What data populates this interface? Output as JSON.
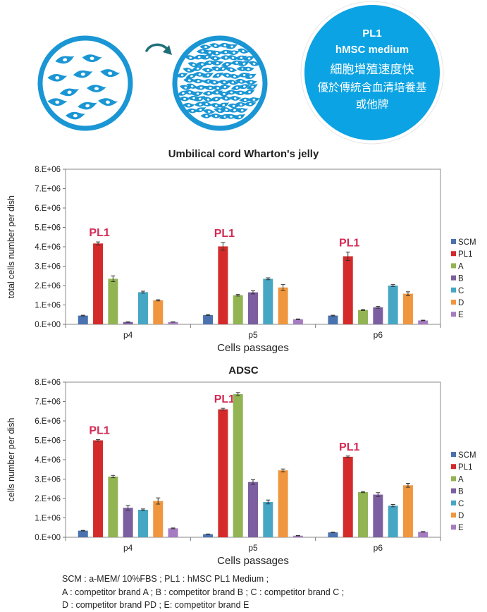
{
  "banner": {
    "line1": "PL1",
    "line2": "hMSC medium",
    "line3": "細胞增殖速度快",
    "line4": "優於傳統含血清培養基",
    "line5": "或他牌",
    "circle_color": "#0ba3e3",
    "cell_color": "#1a96d4"
  },
  "chart_data": [
    {
      "type": "bar",
      "title": "Umbilical cord Wharton's jelly",
      "xlabel": "Cells passages",
      "ylabel": "total cells number per dish",
      "ylim": [
        0,
        8000000
      ],
      "yticks": [
        "0.E+00",
        "1.E+06",
        "2.E+06",
        "3.E+06",
        "4.E+06",
        "5.E+06",
        "6.E+06",
        "7.E+06",
        "8.E+06"
      ],
      "categories": [
        "p4",
        "p5",
        "p6"
      ],
      "annotation": "PL1",
      "legend_position": "right",
      "series": [
        {
          "name": "SCM",
          "color": "#4a72b0",
          "values": [
            450000,
            480000,
            450000
          ],
          "errors": [
            20000,
            25000,
            20000
          ]
        },
        {
          "name": "PL1",
          "color": "#d42a2a",
          "values": [
            4170000,
            4020000,
            3510000
          ],
          "errors": [
            80000,
            200000,
            220000
          ]
        },
        {
          "name": "A",
          "color": "#92b452",
          "values": [
            2350000,
            1500000,
            740000
          ],
          "errors": [
            150000,
            40000,
            30000
          ]
        },
        {
          "name": "B",
          "color": "#7c5fa0",
          "values": [
            120000,
            1650000,
            880000
          ],
          "errors": [
            10000,
            80000,
            50000
          ]
        },
        {
          "name": "C",
          "color": "#46a7c4",
          "values": [
            1660000,
            2350000,
            2000000
          ],
          "errors": [
            50000,
            50000,
            50000
          ]
        },
        {
          "name": "D",
          "color": "#f0963e",
          "values": [
            1240000,
            1900000,
            1580000
          ],
          "errors": [
            30000,
            150000,
            100000
          ]
        },
        {
          "name": "E",
          "color": "#a57cc2",
          "values": [
            120000,
            260000,
            200000
          ],
          "errors": [
            10000,
            20000,
            15000
          ]
        }
      ]
    },
    {
      "type": "bar",
      "title": "ADSC",
      "xlabel": "Cells passages",
      "ylabel": "cells number  per dish",
      "ylim": [
        0,
        8000000
      ],
      "yticks": [
        "0.E+00",
        "1.E+06",
        "2.E+06",
        "3.E+06",
        "4.E+06",
        "5.E+06",
        "6.E+06",
        "7.E+06",
        "8.E+06"
      ],
      "categories": [
        "p4",
        "p5",
        "p6"
      ],
      "annotation": "PL1",
      "legend_position": "right",
      "series": [
        {
          "name": "SCM",
          "color": "#4a72b0",
          "values": [
            340000,
            160000,
            250000
          ],
          "errors": [
            15000,
            10000,
            15000
          ]
        },
        {
          "name": "PL1",
          "color": "#d42a2a",
          "values": [
            5000000,
            6600000,
            4150000
          ],
          "errors": [
            40000,
            50000,
            40000
          ]
        },
        {
          "name": "A",
          "color": "#92b452",
          "values": [
            3130000,
            7380000,
            2330000
          ],
          "errors": [
            60000,
            80000,
            30000
          ]
        },
        {
          "name": "B",
          "color": "#7c5fa0",
          "values": [
            1520000,
            2850000,
            2200000
          ],
          "errors": [
            120000,
            120000,
            100000
          ]
        },
        {
          "name": "C",
          "color": "#46a7c4",
          "values": [
            1420000,
            1820000,
            1630000
          ],
          "errors": [
            40000,
            100000,
            60000
          ]
        },
        {
          "name": "D",
          "color": "#f0963e",
          "values": [
            1870000,
            3450000,
            2680000
          ],
          "errors": [
            160000,
            70000,
            100000
          ]
        },
        {
          "name": "E",
          "color": "#a57cc2",
          "values": [
            460000,
            80000,
            280000
          ],
          "errors": [
            20000,
            10000,
            15000
          ]
        }
      ]
    }
  ],
  "footnote": {
    "line1": "SCM : a-MEM/ 10%FBS ; PL1 : hMSC PL1 Medium ;",
    "line2": "A : competitor brand A ; B : competitor brand B ; C : competitor brand C ;",
    "line3": "D : competitor brand PD ; E: competitor brand E"
  }
}
